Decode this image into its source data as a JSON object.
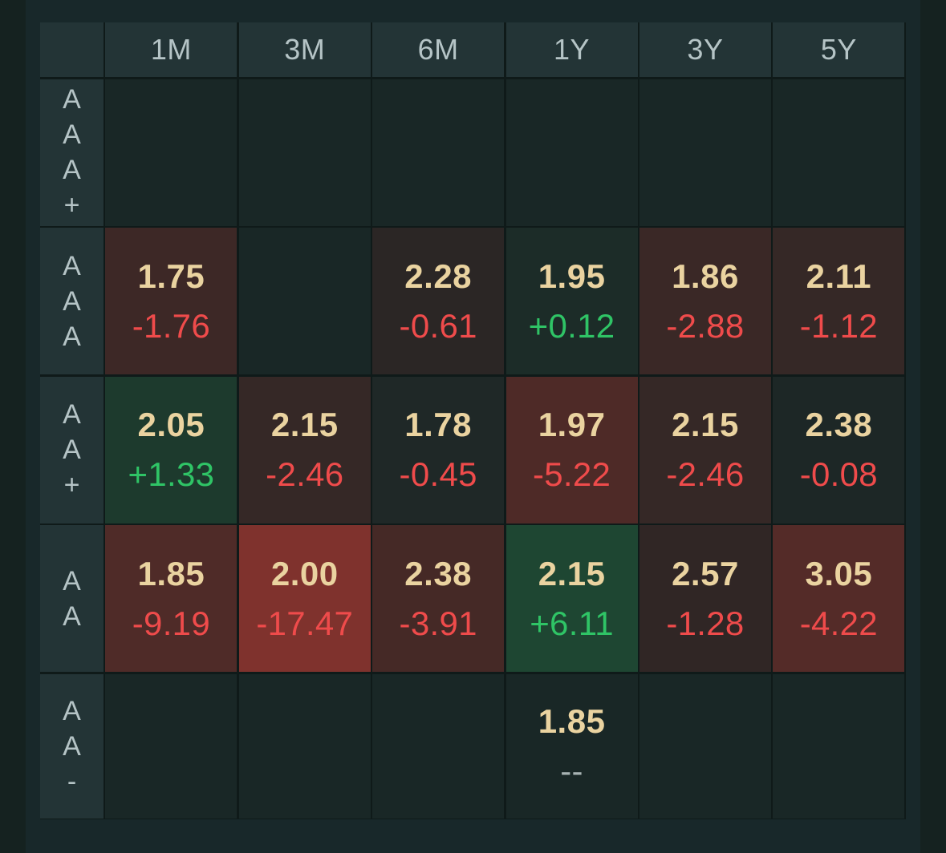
{
  "colors": {
    "background": "#152220",
    "header_bg": "#233436",
    "empty_cell_bg": "#192726",
    "price_text": "#ead3a0",
    "negative_text": "#ef4b4b",
    "positive_text": "#2fc466"
  },
  "columns": [
    "1M",
    "3M",
    "6M",
    "1Y",
    "3Y",
    "5Y"
  ],
  "rows": [
    {
      "label": [
        "A",
        "A",
        "A",
        "+"
      ],
      "cells": [
        null,
        null,
        null,
        null,
        null,
        null
      ]
    },
    {
      "label": [
        "A",
        "A",
        "A"
      ],
      "cells": [
        {
          "price": "1.75",
          "change": "-1.76",
          "direction": "neg",
          "bg": "#3d2826"
        },
        null,
        {
          "price": "2.28",
          "change": "-0.61",
          "direction": "neg",
          "bg": "#2b2625"
        },
        {
          "price": "1.95",
          "change": "+0.12",
          "direction": "pos",
          "bg": "#1c2c28"
        },
        {
          "price": "1.86",
          "change": "-2.88",
          "direction": "neg",
          "bg": "#3a2826"
        },
        {
          "price": "2.11",
          "change": "-1.12",
          "direction": "neg",
          "bg": "#352826"
        }
      ]
    },
    {
      "label": [
        "A",
        "A",
        "+"
      ],
      "cells": [
        {
          "price": "2.05",
          "change": "+1.33",
          "direction": "pos",
          "bg": "#1d3a2d"
        },
        {
          "price": "2.15",
          "change": "-2.46",
          "direction": "neg",
          "bg": "#352826"
        },
        {
          "price": "1.78",
          "change": "-0.45",
          "direction": "neg",
          "bg": "#1f2827"
        },
        {
          "price": "1.97",
          "change": "-5.22",
          "direction": "neg",
          "bg": "#4e2a27"
        },
        {
          "price": "2.15",
          "change": "-2.46",
          "direction": "neg",
          "bg": "#352826"
        },
        {
          "price": "2.38",
          "change": "-0.08",
          "direction": "neg",
          "bg": "#1d2726"
        }
      ]
    },
    {
      "label": [
        "A",
        "A"
      ],
      "cells": [
        {
          "price": "1.85",
          "change": "-9.19",
          "direction": "neg",
          "bg": "#4f2b28"
        },
        {
          "price": "2.00",
          "change": "-17.47",
          "direction": "neg",
          "bg": "#7f322d"
        },
        {
          "price": "2.38",
          "change": "-3.91",
          "direction": "neg",
          "bg": "#452926"
        },
        {
          "price": "2.15",
          "change": "+6.11",
          "direction": "pos",
          "bg": "#1e4632"
        },
        {
          "price": "2.57",
          "change": "-1.28",
          "direction": "neg",
          "bg": "#302625"
        },
        {
          "price": "3.05",
          "change": "-4.22",
          "direction": "neg",
          "bg": "#542b28"
        }
      ]
    },
    {
      "label": [
        "A",
        "A",
        "-"
      ],
      "cells": [
        null,
        null,
        null,
        {
          "price": "1.85",
          "change": "--",
          "direction": "neutral",
          "bg": "#192726"
        },
        null,
        null
      ]
    }
  ]
}
